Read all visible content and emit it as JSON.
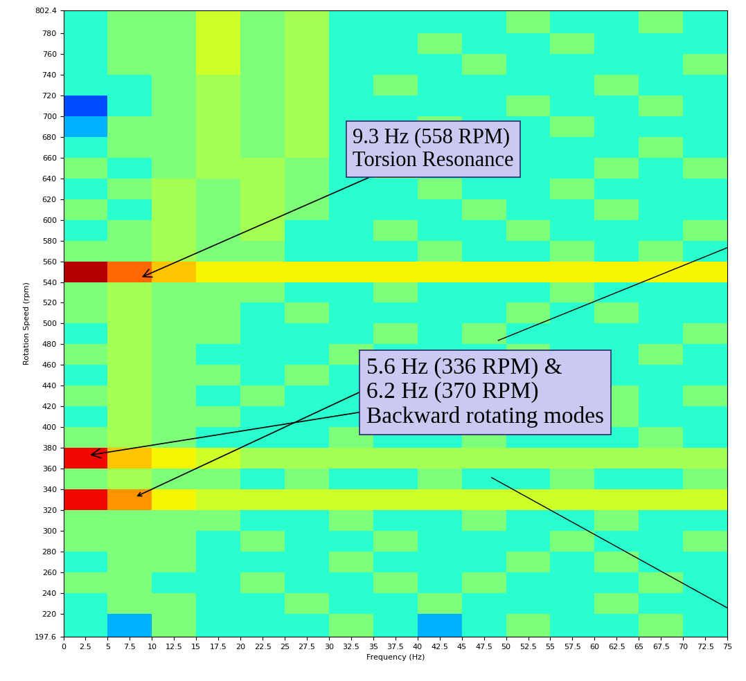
{
  "chart_data": {
    "type": "heatmap",
    "x_label": "Frequency (Hz)",
    "y_label": "Rotation Speed (rpm)",
    "xlim": [
      0,
      75
    ],
    "ylim": [
      197.6,
      802.4
    ],
    "xticks": [
      0,
      2.5,
      5,
      7.5,
      10,
      12.5,
      15,
      17.5,
      20,
      22.5,
      25,
      27.5,
      30,
      32.5,
      35,
      37.5,
      40,
      42.5,
      45,
      47.5,
      50,
      52.5,
      55,
      57.5,
      60,
      62.5,
      65,
      67.5,
      70,
      72.5,
      75
    ],
    "yticks": [
      197.6,
      220,
      240,
      260,
      280,
      300,
      320,
      340,
      360,
      380,
      400,
      420,
      440,
      460,
      480,
      500,
      520,
      540,
      560,
      580,
      600,
      620,
      640,
      660,
      680,
      700,
      720,
      740,
      760,
      780,
      802.4
    ],
    "x_bins": [
      0,
      5,
      10,
      15,
      20,
      25,
      30,
      35,
      40,
      45,
      50,
      55,
      60,
      65,
      70,
      75
    ],
    "y_bins": [
      197.6,
      220,
      240,
      260,
      280,
      300,
      320,
      340,
      360,
      380,
      400,
      420,
      440,
      460,
      480,
      500,
      520,
      540,
      560,
      580,
      600,
      620,
      640,
      660,
      680,
      700,
      720,
      740,
      760,
      780,
      802.4
    ],
    "value_range": [
      0,
      10
    ],
    "cells": [
      [
        4,
        3,
        5,
        4,
        4,
        4,
        5,
        4,
        3,
        4,
        5,
        4,
        4,
        5,
        4
      ],
      [
        4,
        5,
        5,
        4,
        4,
        5,
        4,
        4,
        5,
        4,
        4,
        4,
        5,
        4,
        4
      ],
      [
        5,
        5,
        4,
        4,
        5,
        4,
        4,
        5,
        4,
        5,
        4,
        4,
        4,
        5,
        4
      ],
      [
        4,
        5,
        5,
        4,
        4,
        4,
        5,
        4,
        4,
        4,
        5,
        4,
        5,
        4,
        4
      ],
      [
        5,
        5,
        5,
        4,
        5,
        4,
        4,
        5,
        4,
        4,
        4,
        5,
        4,
        4,
        5
      ],
      [
        5,
        5,
        5,
        5,
        4,
        4,
        5,
        4,
        4,
        5,
        4,
        4,
        5,
        4,
        4
      ],
      [
        9,
        7.5,
        6.5,
        6,
        6,
        6,
        6,
        6,
        6,
        6,
        6,
        6,
        6,
        6,
        6
      ],
      [
        5,
        5.5,
        5,
        5,
        4,
        5,
        4,
        4,
        5,
        4,
        4,
        5,
        4,
        4,
        5
      ],
      [
        9,
        7,
        6.5,
        6,
        5.5,
        5.5,
        5.5,
        5.5,
        5.5,
        5.5,
        5.5,
        5.5,
        5.5,
        5.5,
        5.5
      ],
      [
        5,
        5.5,
        5,
        4,
        4,
        4,
        5,
        4,
        4,
        5,
        4,
        4,
        4,
        5,
        4
      ],
      [
        4,
        5.5,
        5,
        5,
        4,
        4,
        4,
        5,
        4,
        4,
        5,
        4,
        5,
        4,
        4
      ],
      [
        5,
        5.5,
        5,
        4,
        5,
        4,
        4,
        4,
        5,
        4,
        4,
        4,
        5,
        4,
        5
      ],
      [
        4,
        5.5,
        5,
        5,
        4,
        5,
        4,
        4,
        4,
        5,
        4,
        5,
        4,
        4,
        4
      ],
      [
        5,
        5.5,
        5,
        4,
        4,
        4,
        5,
        4,
        4,
        4,
        5,
        4,
        4,
        5,
        4
      ],
      [
        4,
        5.5,
        5,
        5,
        4,
        4,
        4,
        5,
        4,
        5,
        4,
        4,
        4,
        4,
        5
      ],
      [
        5,
        5.5,
        5,
        5,
        4,
        5,
        4,
        4,
        4,
        4,
        5,
        4,
        5,
        4,
        4
      ],
      [
        5,
        5.5,
        5,
        5,
        5,
        4,
        4,
        5,
        4,
        4,
        4,
        5,
        4,
        4,
        4
      ],
      [
        9.5,
        8,
        7,
        6.5,
        6.5,
        6.5,
        6.5,
        6.5,
        6.5,
        6.5,
        6.5,
        6.5,
        6.5,
        6.5,
        6.5
      ],
      [
        5,
        5,
        5.5,
        5,
        5,
        4,
        4,
        4,
        5,
        4,
        4,
        5,
        4,
        5,
        4
      ],
      [
        4,
        5,
        5.5,
        5,
        5.5,
        4,
        4,
        5,
        4,
        4,
        5,
        4,
        4,
        4,
        5
      ],
      [
        5,
        4,
        5.5,
        5,
        5.5,
        5,
        4,
        4,
        4,
        5,
        4,
        4,
        5,
        4,
        4
      ],
      [
        4,
        5,
        5.5,
        5,
        5.5,
        5,
        4,
        4,
        5,
        4,
        4,
        5,
        4,
        4,
        4
      ],
      [
        5,
        4,
        5,
        5.5,
        5.5,
        5,
        4,
        5,
        4,
        4,
        4,
        4,
        5,
        4,
        5
      ],
      [
        4,
        5,
        5,
        5.5,
        5,
        5.5,
        4,
        4,
        4,
        5,
        4,
        4,
        4,
        5,
        4
      ],
      [
        3,
        5,
        5,
        5.5,
        5,
        5.5,
        4,
        4,
        5,
        4,
        4,
        5,
        4,
        4,
        4
      ],
      [
        2,
        4,
        5,
        5.5,
        5,
        5.5,
        4,
        4,
        4,
        4,
        5,
        4,
        4,
        5,
        4
      ],
      [
        4,
        4,
        5,
        5.5,
        5,
        5.5,
        4,
        5,
        4,
        4,
        4,
        4,
        5,
        4,
        4
      ],
      [
        4,
        5,
        5,
        6,
        5,
        5.5,
        4,
        4,
        4,
        5,
        4,
        4,
        4,
        4,
        5
      ],
      [
        4,
        5,
        5,
        6,
        5,
        5.5,
        4,
        4,
        5,
        4,
        4,
        5,
        4,
        4,
        4
      ],
      [
        4,
        5,
        5,
        6,
        5,
        5.5,
        4,
        4,
        4,
        4,
        5,
        4,
        4,
        5,
        4
      ]
    ],
    "annotations": [
      "9.3 Hz (558 RPM)\nTorsion Resonance",
      "5.6 Hz (336 RPM) &\n6.2 Hz (370 RPM)\nBackward rotating modes"
    ]
  }
}
